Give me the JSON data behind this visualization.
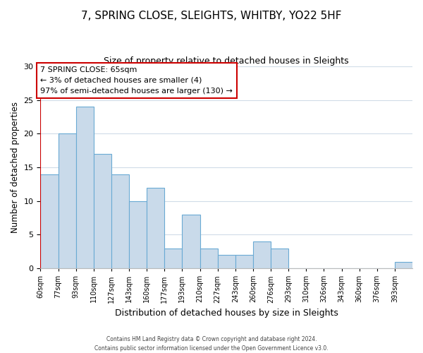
{
  "title": "7, SPRING CLOSE, SLEIGHTS, WHITBY, YO22 5HF",
  "subtitle": "Size of property relative to detached houses in Sleights",
  "xlabel": "Distribution of detached houses by size in Sleights",
  "ylabel": "Number of detached properties",
  "bin_labels": [
    "60sqm",
    "77sqm",
    "93sqm",
    "110sqm",
    "127sqm",
    "143sqm",
    "160sqm",
    "177sqm",
    "193sqm",
    "210sqm",
    "227sqm",
    "243sqm",
    "260sqm",
    "276sqm",
    "293sqm",
    "310sqm",
    "326sqm",
    "343sqm",
    "360sqm",
    "376sqm",
    "393sqm"
  ],
  "bar_values": [
    14,
    20,
    24,
    17,
    14,
    10,
    12,
    3,
    8,
    3,
    2,
    2,
    4,
    3,
    0,
    0,
    0,
    0,
    0,
    0,
    1
  ],
  "bar_color": "#c9daea",
  "bar_edge_color": "#6aaad4",
  "highlight_line_color": "#cc0000",
  "annotation_title": "7 SPRING CLOSE: 65sqm",
  "annotation_line1": "← 3% of detached houses are smaller (4)",
  "annotation_line2": "97% of semi-detached houses are larger (130) →",
  "annotation_box_facecolor": "#ffffff",
  "annotation_box_edgecolor": "#cc0000",
  "ylim": [
    0,
    30
  ],
  "yticks": [
    0,
    5,
    10,
    15,
    20,
    25,
    30
  ],
  "grid_color": "#d0dce8",
  "footer1": "Contains HM Land Registry data © Crown copyright and database right 2024.",
  "footer2": "Contains public sector information licensed under the Open Government Licence v3.0."
}
